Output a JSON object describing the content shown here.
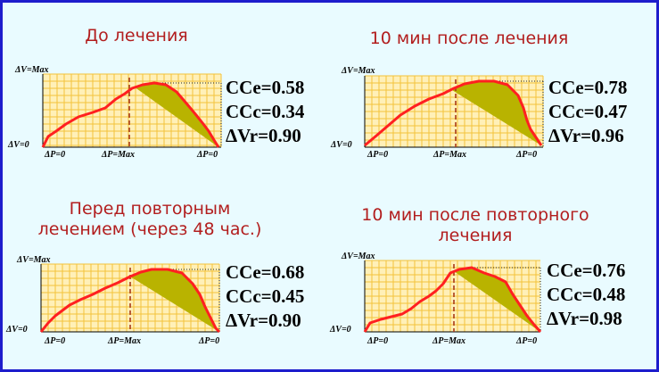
{
  "panels": [
    {
      "title": "До лечения",
      "labels": {
        "y_top": "ΔV=Max",
        "y_bottom": "ΔV=0",
        "x_left": "ΔP=0",
        "x_mid": "ΔP=Max",
        "x_right": "ΔP=0"
      },
      "coefficients": [
        "CCe=0.58",
        "CCc=0.34",
        "ΔVr=0.90"
      ]
    },
    {
      "title": "10  мин после лечения",
      "labels": {
        "y_top": "ΔV=Max",
        "y_bottom": "ΔV=0",
        "x_left": "ΔP=0",
        "x_mid": "ΔP=Max",
        "x_right": "ΔP=0"
      },
      "coefficients": [
        "CCe=0.78",
        "CCc=0.47",
        "ΔVr=0.96"
      ]
    },
    {
      "title": "Перед повторным\nлечением (через 48 час.)",
      "labels": {
        "y_top": "ΔV=Max",
        "y_bottom": "ΔV=0",
        "x_left": "ΔP=0",
        "x_mid": "ΔP=Max",
        "x_right": "ΔP=0"
      },
      "coefficients": [
        "CCe=0.68",
        "CCc=0.45",
        "ΔVr=0.90"
      ]
    },
    {
      "title": "10 мин после повторного\nлечения",
      "labels": {
        "y_top": "ΔV=Max",
        "y_bottom": "ΔV=0",
        "x_left": "ΔP=0",
        "x_mid": "ΔP=Max",
        "x_right": "ΔP=0"
      },
      "coefficients": [
        "CCe=0.76",
        "CCc=0.48",
        "ΔVr=0.98"
      ]
    }
  ],
  "colors": {
    "frame": "#1d1dcc",
    "background": "#e9fbff",
    "title": "#b21e1e",
    "grid_fill": "#fff0b8",
    "grid_line": "#f3c23a",
    "curve": "#ff2020",
    "loop_fill": "#b9b300",
    "max_line": "#a83a1a"
  }
}
